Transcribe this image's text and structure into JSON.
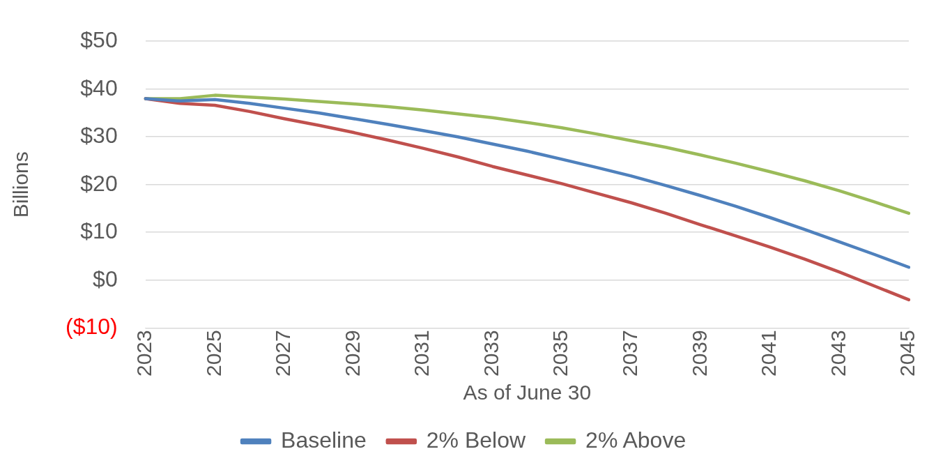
{
  "chart_data": {
    "type": "line",
    "xlabel": "As of June 30",
    "ylabel": "Billions",
    "categories": [
      "2023",
      null,
      "2025",
      null,
      "2027",
      null,
      "2029",
      null,
      "2031",
      null,
      "2033",
      null,
      "2035",
      null,
      "2037",
      null,
      "2039",
      null,
      "2041",
      null,
      "2043",
      null,
      "2045"
    ],
    "series": [
      {
        "name": "Baseline",
        "color": "#4f81bd",
        "values": [
          38,
          37.5,
          37.8,
          37,
          36,
          35,
          33.8,
          32.6,
          31.3,
          30,
          28.5,
          27,
          25.3,
          23.6,
          21.8,
          19.8,
          17.7,
          15.5,
          13.1,
          10.6,
          8.0,
          5.4,
          2.7
        ]
      },
      {
        "name": "2% Below",
        "color": "#c0504d",
        "values": [
          38,
          37,
          36.6,
          35.3,
          33.8,
          32.4,
          30.9,
          29.3,
          27.6,
          25.8,
          23.8,
          22.0,
          20.2,
          18.2,
          16.2,
          14.0,
          11.6,
          9.3,
          6.9,
          4.4,
          1.7,
          -1.2,
          -4.1
        ]
      },
      {
        "name": "2% Above",
        "color": "#9bbb59",
        "values": [
          38,
          38,
          38.7,
          38.3,
          37.9,
          37.4,
          36.9,
          36.3,
          35.6,
          34.8,
          34.0,
          33.0,
          31.9,
          30.6,
          29.2,
          27.8,
          26.2,
          24.5,
          22.7,
          20.8,
          18.7,
          16.4,
          14.0
        ]
      }
    ],
    "ylim": [
      -10,
      50
    ],
    "yticks": [
      {
        "value": -10,
        "label": "($10)"
      },
      {
        "value": 0,
        "label": "$0"
      },
      {
        "value": 10,
        "label": "$10"
      },
      {
        "value": 20,
        "label": "$20"
      },
      {
        "value": 30,
        "label": "$30"
      },
      {
        "value": 40,
        "label": "$40"
      },
      {
        "value": 50,
        "label": "$50"
      }
    ],
    "grid": "y",
    "legend": "bottom",
    "marker": "none",
    "line_style": "solid"
  }
}
